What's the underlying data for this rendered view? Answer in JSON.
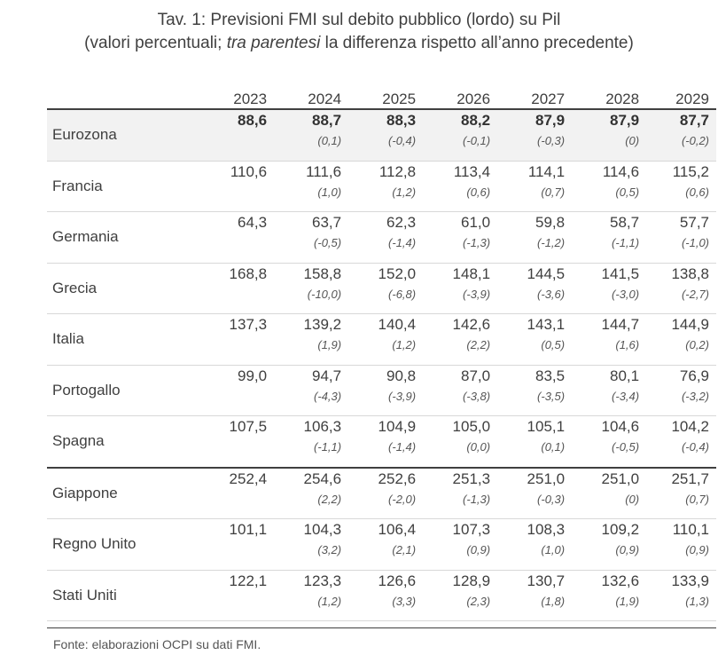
{
  "title": "Tav. 1: Previsioni FMI sul debito pubblico (lordo) su Pil",
  "subtitle_pre": "(valori percentuali; ",
  "subtitle_em": "tra parentesi",
  "subtitle_post": " la differenza rispetto all’anno precedente)",
  "years": [
    "2023",
    "2024",
    "2025",
    "2026",
    "2027",
    "2028",
    "2029"
  ],
  "rows": [
    {
      "name": "Eurozona",
      "values": [
        "88,6",
        "88,7",
        "88,3",
        "88,2",
        "87,9",
        "87,9",
        "87,7"
      ],
      "diffs": [
        "",
        "(0,1)",
        "(-0,4)",
        "(-0,1)",
        "(-0,3)",
        "(0)",
        "(-0,2)"
      ]
    },
    {
      "name": "Francia",
      "values": [
        "110,6",
        "111,6",
        "112,8",
        "113,4",
        "114,1",
        "114,6",
        "115,2"
      ],
      "diffs": [
        "",
        "(1,0)",
        "(1,2)",
        "(0,6)",
        "(0,7)",
        "(0,5)",
        "(0,6)"
      ]
    },
    {
      "name": "Germania",
      "values": [
        "64,3",
        "63,7",
        "62,3",
        "61,0",
        "59,8",
        "58,7",
        "57,7"
      ],
      "diffs": [
        "",
        "(-0,5)",
        "(-1,4)",
        "(-1,3)",
        "(-1,2)",
        "(-1,1)",
        "(-1,0)"
      ]
    },
    {
      "name": "Grecia",
      "values": [
        "168,8",
        "158,8",
        "152,0",
        "148,1",
        "144,5",
        "141,5",
        "138,8"
      ],
      "diffs": [
        "",
        "(-10,0)",
        "(-6,8)",
        "(-3,9)",
        "(-3,6)",
        "(-3,0)",
        "(-2,7)"
      ]
    },
    {
      "name": "Italia",
      "values": [
        "137,3",
        "139,2",
        "140,4",
        "142,6",
        "143,1",
        "144,7",
        "144,9"
      ],
      "diffs": [
        "",
        "(1,9)",
        "(1,2)",
        "(2,2)",
        "(0,5)",
        "(1,6)",
        "(0,2)"
      ]
    },
    {
      "name": "Portogallo",
      "values": [
        "99,0",
        "94,7",
        "90,8",
        "87,0",
        "83,5",
        "80,1",
        "76,9"
      ],
      "diffs": [
        "",
        "(-4,3)",
        "(-3,9)",
        "(-3,8)",
        "(-3,5)",
        "(-3,4)",
        "(-3,2)"
      ]
    },
    {
      "name": "Spagna",
      "values": [
        "107,5",
        "106,3",
        "104,9",
        "105,0",
        "105,1",
        "104,6",
        "104,2"
      ],
      "diffs": [
        "",
        "(-1,1)",
        "(-1,4)",
        "(0,0)",
        "(0,1)",
        "(-0,5)",
        "(-0,4)"
      ]
    },
    {
      "name": "Giappone",
      "values": [
        "252,4",
        "254,6",
        "252,6",
        "251,3",
        "251,0",
        "251,0",
        "251,7"
      ],
      "diffs": [
        "",
        "(2,2)",
        "(-2,0)",
        "(-1,3)",
        "(-0,3)",
        "(0)",
        "(0,7)"
      ]
    },
    {
      "name": "Regno Unito",
      "values": [
        "101,1",
        "104,3",
        "106,4",
        "107,3",
        "108,3",
        "109,2",
        "110,1"
      ],
      "diffs": [
        "",
        "(3,2)",
        "(2,1)",
        "(0,9)",
        "(1,0)",
        "(0,9)",
        "(0,9)"
      ]
    },
    {
      "name": "Stati Uniti",
      "values": [
        "122,1",
        "123,3",
        "126,6",
        "128,9",
        "130,7",
        "132,6",
        "133,9"
      ],
      "diffs": [
        "",
        "(1,2)",
        "(3,3)",
        "(2,3)",
        "(1,8)",
        "(1,9)",
        "(1,3)"
      ]
    }
  ],
  "source": "Fonte: elaborazioni OCPI su dati FMI."
}
